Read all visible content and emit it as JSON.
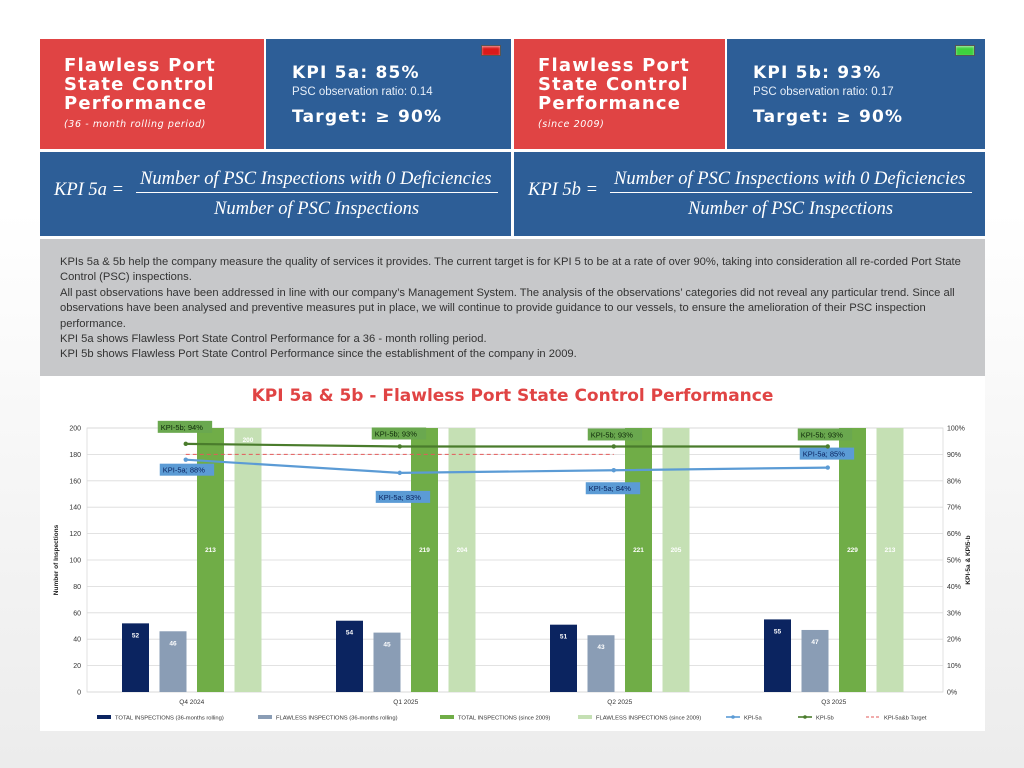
{
  "left_block": {
    "title": "Flawless Port State Control Performance",
    "subtitle": "(36 - month rolling period)"
  },
  "kpi_5a": {
    "title": "KPI 5a: 85%",
    "observation": "PSC observation ratio: 0.14",
    "target": "Target: ≥ 90%",
    "status_color": "#d91a1a"
  },
  "right_block": {
    "title": "Flawless Port State Control Performance",
    "subtitle": "(since 2009)"
  },
  "kpi_5b": {
    "title": "KPI 5b: 93%",
    "observation": "PSC observation ratio: 0.17",
    "target": "Target: ≥ 90%",
    "status_color": "#3ed23e"
  },
  "formula_5a": {
    "lhs": "KPI 5a =",
    "numerator": "Number of PSC Inspections with 0 Deficiencies",
    "denominator": "Number of PSC Inspections"
  },
  "formula_5b": {
    "lhs": "KPI 5b =",
    "numerator": "Number of PSC Inspections with 0 Deficiencies",
    "denominator": "Number of PSC Inspections"
  },
  "description": {
    "p1": "KPIs 5a & 5b help the company measure the quality of services it provides. The current target is for KPI 5 to be at a rate of over 90%, taking into consideration all re-corded Port State Control (PSC) inspections.",
    "p2": "All past observations have been addressed in line with our company’s Management System. The analysis of the observations’ categories did not reveal any particular trend. Since all observations have been analysed and preventive measures put in place, we will continue to provide guidance to our vessels, to ensure the amelioration of their PSC inspection performance.",
    "p3": "KPI 5a shows Flawless Port State Control Performance for a 36 - month rolling period.",
    "p4": "KPI 5b shows Flawless Port State Control Performance since the establishment of the company in 2009."
  },
  "chart_data": {
    "type": "bar",
    "title": "KPI 5a & 5b - Flawless Port State Control Performance",
    "ylabel": "Number of Inspections",
    "y2label": "KPI-5a & KPI5-b",
    "ylim": [
      0,
      200
    ],
    "y2lim": [
      0,
      100
    ],
    "yticks": [
      "0",
      "20",
      "40",
      "60",
      "80",
      "100",
      "120",
      "140",
      "160",
      "180",
      "200"
    ],
    "y2ticks": [
      "0%",
      "10%",
      "20%",
      "30%",
      "40%",
      "50%",
      "60%",
      "70%",
      "80%",
      "90%",
      "100%"
    ],
    "categories": [
      "Q4 2024",
      "Q1 2025",
      "Q2 2025",
      "Q3 2025"
    ],
    "bar_series": [
      {
        "name": "TOTAL INSPECTIONS (36-months rolling)",
        "color": "#0b2460",
        "values": [
          52,
          54,
          51,
          55
        ]
      },
      {
        "name": "FLAWLESS INSPECTIONS (36-months rolling)",
        "color": "#8a9db5",
        "values": [
          46,
          45,
          43,
          47
        ]
      },
      {
        "name": "TOTAL INSPECTIONS (since 2009)",
        "color": "#70ad47",
        "values": [
          213,
          219,
          221,
          229
        ]
      },
      {
        "name": "FLAWLESS INSPECTIONS (since 2009)",
        "color": "#c5e0b4",
        "values": [
          200,
          204,
          205,
          213
        ]
      }
    ],
    "line_series": [
      {
        "name": "KPI-5a",
        "color": "#5b9bd5",
        "values": [
          88,
          83,
          84,
          85
        ],
        "labels": [
          "KPI-5a; 88%",
          "KPI-5a; 83%",
          "KPI-5a; 84%",
          "KPI-5a; 85%"
        ]
      },
      {
        "name": "KPI-5b",
        "color": "#4a7c2c",
        "values": [
          94,
          93,
          93,
          93
        ],
        "labels": [
          "KPI-5b; 94%",
          "KPI-5b; 93%",
          "KPI-5b; 93%",
          "KPI-5b; 93%"
        ]
      }
    ],
    "target_series": {
      "name": "KPI-5a&b Target",
      "color": "#e35a5a",
      "value": 90
    },
    "legend_position": "bottom",
    "grid": true
  }
}
